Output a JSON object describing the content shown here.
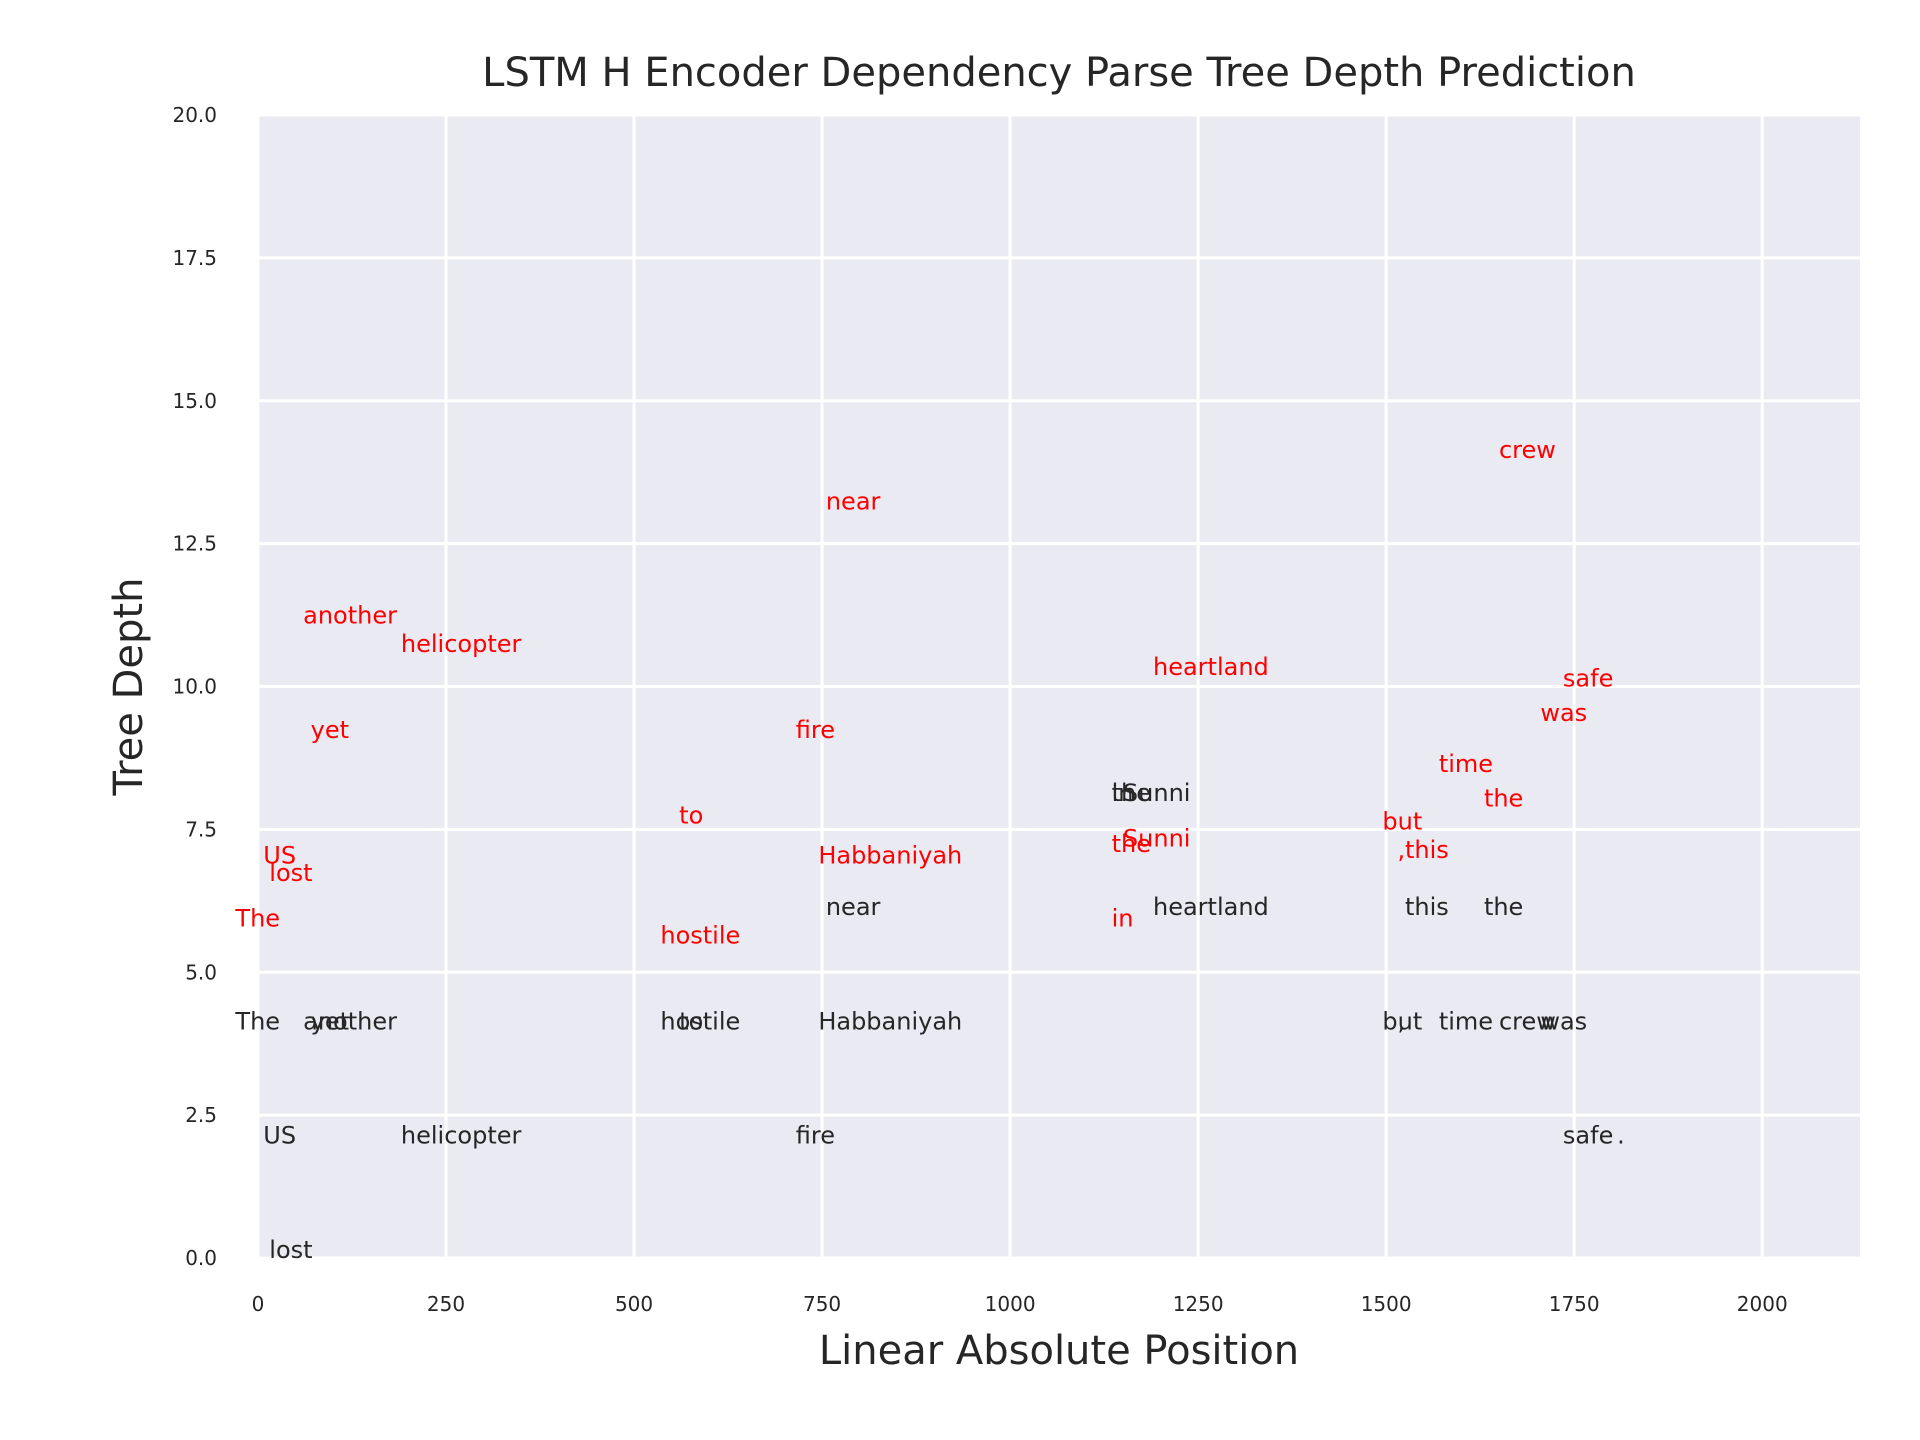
{
  "chart_data": {
    "type": "scatter",
    "title": "LSTM H Encoder Dependency Parse Tree Depth Prediction",
    "xlabel": "Linear Absolute Position",
    "ylabel": "Tree Depth",
    "xlim": [
      0,
      2130
    ],
    "ylim": [
      0,
      20
    ],
    "xticks": [
      0,
      250,
      500,
      750,
      1000,
      1250,
      1500,
      1750,
      2000
    ],
    "yticks": [
      0.0,
      2.5,
      5.0,
      7.5,
      10.0,
      12.5,
      15.0,
      17.5,
      20.0
    ],
    "xtick_labels": [
      "0",
      "250",
      "500",
      "750",
      "1000",
      "1250",
      "1500",
      "1750",
      "2000"
    ],
    "ytick_labels": [
      "0.0",
      "2.5",
      "5.0",
      "7.5",
      "10.0",
      "12.5",
      "15.0",
      "17.5",
      "20.0"
    ],
    "grid": true,
    "colors": {
      "gold": "#262626",
      "predicted": "#ff0000",
      "plot_bg": "#eaeaf2",
      "grid": "#ffffff"
    },
    "series": [
      {
        "color": "#262626",
        "points": [
          {
            "x": -30,
            "y": 4,
            "label": "The"
          },
          {
            "x": 7,
            "y": 2,
            "label": "US"
          },
          {
            "x": 15,
            "y": 0,
            "label": "lost"
          },
          {
            "x": 60,
            "y": 4,
            "label": "another"
          },
          {
            "x": 70,
            "y": 4,
            "label": "yet"
          },
          {
            "x": 190,
            "y": 2,
            "label": "helicopter"
          },
          {
            "x": 535,
            "y": 4,
            "label": "hostile"
          },
          {
            "x": 560,
            "y": 4,
            "label": "to"
          },
          {
            "x": 715,
            "y": 2,
            "label": "fire"
          },
          {
            "x": 745,
            "y": 4,
            "label": "Habbaniyah"
          },
          {
            "x": 755,
            "y": 6,
            "label": "near"
          },
          {
            "x": 1135,
            "y": 8,
            "label": "in"
          },
          {
            "x": 1135,
            "y": 8,
            "label": "the"
          },
          {
            "x": 1150,
            "y": 8,
            "label": "Sunni"
          },
          {
            "x": 1190,
            "y": 6,
            "label": "heartland"
          },
          {
            "x": 1495,
            "y": 4,
            "label": "but"
          },
          {
            "x": 1515,
            "y": 4,
            "label": ","
          },
          {
            "x": 1525,
            "y": 6,
            "label": "this"
          },
          {
            "x": 1570,
            "y": 4,
            "label": "time"
          },
          {
            "x": 1630,
            "y": 6,
            "label": "the"
          },
          {
            "x": 1650,
            "y": 4,
            "label": "crew"
          },
          {
            "x": 1705,
            "y": 4,
            "label": "was"
          },
          {
            "x": 1735,
            "y": 2,
            "label": "safe"
          },
          {
            "x": 1807,
            "y": 2,
            "label": "."
          }
        ]
      },
      {
        "color": "#ff0000",
        "points": [
          {
            "x": -30,
            "y": 5.8,
            "label": "The"
          },
          {
            "x": 7,
            "y": 6.9,
            "label": "US"
          },
          {
            "x": 15,
            "y": 6.6,
            "label": "lost"
          },
          {
            "x": 60,
            "y": 11.1,
            "label": "another"
          },
          {
            "x": 70,
            "y": 9.1,
            "label": "yet"
          },
          {
            "x": 190,
            "y": 10.6,
            "label": "helicopter"
          },
          {
            "x": 535,
            "y": 5.5,
            "label": "hostile"
          },
          {
            "x": 560,
            "y": 7.6,
            "label": "to"
          },
          {
            "x": 715,
            "y": 9.1,
            "label": "fire"
          },
          {
            "x": 745,
            "y": 6.9,
            "label": "Habbaniyah"
          },
          {
            "x": 755,
            "y": 13.1,
            "label": "near"
          },
          {
            "x": 1135,
            "y": 5.8,
            "label": "in"
          },
          {
            "x": 1135,
            "y": 7.1,
            "label": "the"
          },
          {
            "x": 1150,
            "y": 7.2,
            "label": "Sunni"
          },
          {
            "x": 1190,
            "y": 10.2,
            "label": "heartland"
          },
          {
            "x": 1495,
            "y": 7.5,
            "label": "but"
          },
          {
            "x": 1515,
            "y": 7.0,
            "label": ","
          },
          {
            "x": 1525,
            "y": 7.0,
            "label": "this"
          },
          {
            "x": 1570,
            "y": 8.5,
            "label": "time"
          },
          {
            "x": 1630,
            "y": 7.9,
            "label": "the"
          },
          {
            "x": 1650,
            "y": 14.0,
            "label": "crew"
          },
          {
            "x": 1705,
            "y": 9.4,
            "label": "was"
          },
          {
            "x": 1735,
            "y": 10.0,
            "label": "safe"
          }
        ]
      }
    ]
  }
}
